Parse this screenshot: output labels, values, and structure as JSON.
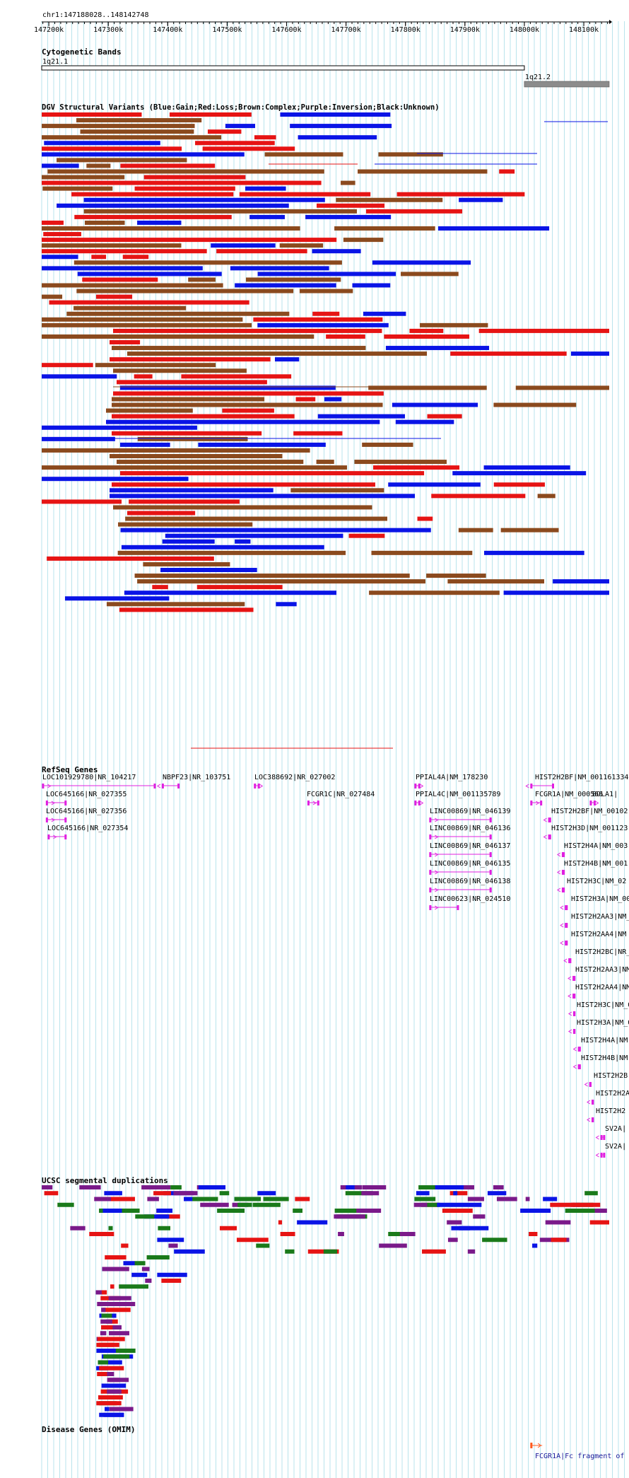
{
  "ruler": {
    "position": "chr1:147188028..148142748",
    "start": 147188028,
    "end": 148142748,
    "ticks": [
      {
        "value": 147200000,
        "label": "147200k"
      },
      {
        "value": 147300000,
        "label": "147300k"
      },
      {
        "value": 147400000,
        "label": "147400k"
      },
      {
        "value": 147500000,
        "label": "147500k"
      },
      {
        "value": 147600000,
        "label": "147600k"
      },
      {
        "value": 147700000,
        "label": "147700k"
      },
      {
        "value": 147800000,
        "label": "147800k"
      },
      {
        "value": 147900000,
        "label": "147900k"
      },
      {
        "value": 148000000,
        "label": "148000k"
      },
      {
        "value": 148100000,
        "label": "148100k"
      }
    ]
  },
  "colors": {
    "gain": "#0a14e6",
    "loss": "#e61414",
    "complex": "#8b4a1e",
    "inversion": "#7a1a8a",
    "unknown": "#000000",
    "gene": "#e020e0",
    "segdup_red": "#e61414",
    "segdup_blue": "#0a14e6",
    "segdup_green": "#1a7a1a",
    "segdup_purple": "#7a1a8a",
    "omim": "#ff5a1e",
    "grid": "#a8dde8"
  },
  "tracks": {
    "cyto": {
      "title": "Cytogenetic Bands",
      "bands": [
        {
          "name": "1q21.1",
          "start": 147188028,
          "end": 148000000,
          "stain": "gneg"
        },
        {
          "name": "1q21.2",
          "start": 148000000,
          "end": 148142748,
          "stain": "gpos"
        }
      ]
    },
    "dgv": {
      "title": "DGV Structural Variants (Blue:Gain;Red:Loss;Brown:Complex;Purple:Inversion;Black:Unknown)"
    },
    "refseq": {
      "title": "RefSeq Genes",
      "genes": [
        {
          "label": "LOC101929780|NR_104217",
          "start": 147188500,
          "end": 147380000,
          "strand": "+"
        },
        {
          "label": "NBPF23|NR_103751",
          "start": 147390000,
          "end": 147420000,
          "strand": "-"
        },
        {
          "label": "LOC388692|NR_027002",
          "start": 147545000,
          "end": 147555000,
          "strand": "+"
        },
        {
          "label": "PPIAL4A|NM_178230",
          "start": 147815000,
          "end": 147825000,
          "strand": "+"
        },
        {
          "label": "HIST2H2BF|NM_001161334",
          "start": 148010000,
          "end": 148050000,
          "strand": "-"
        },
        {
          "label": "LOC645166|NR_027355",
          "start": 147195000,
          "end": 147230000,
          "strand": "+"
        },
        {
          "label": "FCGR1C|NR_027484",
          "start": 147635000,
          "end": 147655000,
          "strand": "+"
        },
        {
          "label": "PPIAL4C|NM_001135789",
          "start": 147815000,
          "end": 147825000,
          "strand": "+"
        },
        {
          "label": "FCGR1A|NM_000566",
          "start": 148010000,
          "end": 148030000,
          "strand": "+"
        },
        {
          "label": "BOLA1|",
          "start": 148110000,
          "end": 148120000,
          "strand": "+"
        },
        {
          "label": "LOC645166|NR_027356",
          "start": 147195000,
          "end": 147230000,
          "strand": "+"
        },
        {
          "label": "LINC00869|NR_046139",
          "start": 147840000,
          "end": 147945000,
          "strand": "+"
        },
        {
          "label": "HIST2H2BF|NM_00102",
          "start": 148040000,
          "end": 148045000,
          "strand": "-"
        },
        {
          "label": "LOC645166|NR_027354",
          "start": 147198000,
          "end": 147230000,
          "strand": "+"
        },
        {
          "label": "LINC00869|NR_046136",
          "start": 147840000,
          "end": 147945000,
          "strand": "+"
        },
        {
          "label": "HIST2H3D|NM_001123",
          "start": 148040000,
          "end": 148045000,
          "strand": "-"
        },
        {
          "label": "LINC00869|NR_046137",
          "start": 147840000,
          "end": 147945000,
          "strand": "+"
        },
        {
          "label": "HIST2H4A|NM_003",
          "start": 148063000,
          "end": 148068000,
          "strand": "-"
        },
        {
          "label": "LINC00869|NR_046135",
          "start": 147840000,
          "end": 147945000,
          "strand": "+"
        },
        {
          "label": "HIST2H4B|NM_001",
          "start": 148063000,
          "end": 148068000,
          "strand": "-"
        },
        {
          "label": "LINC00869|NR_046138",
          "start": 147840000,
          "end": 147945000,
          "strand": "+"
        },
        {
          "label": "HIST2H3C|NM_02",
          "start": 148063000,
          "end": 148068000,
          "strand": "-"
        },
        {
          "label": "LINC00623|NR_024510",
          "start": 147840000,
          "end": 147890000,
          "strand": "+"
        },
        {
          "label": "HIST2H3A|NM_00",
          "start": 148068000,
          "end": 148073000,
          "strand": "-"
        },
        {
          "label": "HIST2H2AA3|NM_",
          "start": 148068000,
          "end": 148073000,
          "strand": "-"
        },
        {
          "label": "HIST2H2AA4|NM",
          "start": 148068000,
          "end": 148073000,
          "strand": "-"
        },
        {
          "label": "HIST2H2BC|NR_",
          "start": 148074000,
          "end": 148079000,
          "strand": "-"
        },
        {
          "label": "HIST2H2AA3|NM",
          "start": 148081000,
          "end": 148086000,
          "strand": "-"
        },
        {
          "label": "HIST2H2AA4|NM",
          "start": 148081000,
          "end": 148086000,
          "strand": "-"
        },
        {
          "label": "HIST2H3C|NM_0",
          "start": 148082000,
          "end": 148086000,
          "strand": "-"
        },
        {
          "label": "HIST2H3A|NM_0",
          "start": 148082000,
          "end": 148086000,
          "strand": "-"
        },
        {
          "label": "HIST2H4A|NM",
          "start": 148090000,
          "end": 148095000,
          "strand": "-"
        },
        {
          "label": "HIST2H4B|NM",
          "start": 148090000,
          "end": 148095000,
          "strand": "-"
        },
        {
          "label": "HIST2H2B",
          "start": 148109000,
          "end": 148113000,
          "strand": "-"
        },
        {
          "label": "HIST2H2A",
          "start": 148113000,
          "end": 148117000,
          "strand": "-"
        },
        {
          "label": "HIST2H2",
          "start": 148113000,
          "end": 148117000,
          "strand": "-"
        },
        {
          "label": "SV2A|",
          "start": 148128000,
          "end": 148136000,
          "strand": "-"
        },
        {
          "label": "SV2A|",
          "start": 148128000,
          "end": 148136000,
          "strand": "-"
        }
      ]
    },
    "segdup": {
      "title": "UCSC segmental duplications"
    },
    "omim": {
      "title": "Disease Genes (OMIM)",
      "items": [
        {
          "label": "FCGR1A|Fc fragment of",
          "start": 148010000,
          "end": 148030000,
          "strand": "+"
        }
      ]
    }
  }
}
